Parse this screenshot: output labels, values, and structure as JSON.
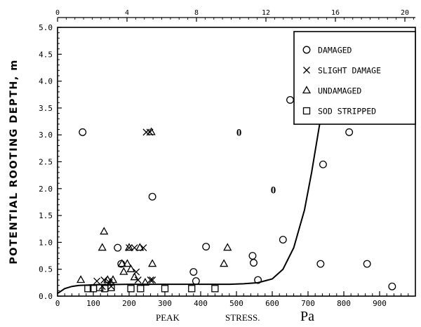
{
  "chart_data": {
    "type": "scatter",
    "title": "",
    "xlabel": "PEAK STRESS. Pa",
    "xlabel_parts": [
      "PEAK",
      "STRESS.",
      "Pa"
    ],
    "ylabel": "POTENTIAL ROOTING DEPTH, m",
    "xlim": [
      0,
      1000
    ],
    "ylim": [
      0,
      5.0
    ],
    "x_ticks": [
      0,
      100,
      200,
      300,
      400,
      500,
      600,
      700,
      800,
      900
    ],
    "x_tick_labels": [
      "0",
      "100",
      "200",
      "300",
      "400",
      "500",
      "600",
      "700",
      "800",
      "900"
    ],
    "y_ticks": [
      0,
      0.5,
      1.0,
      1.5,
      2.0,
      2.5,
      3.0,
      3.5,
      4.0,
      4.5,
      5.0
    ],
    "y_tick_labels": [
      "0.0",
      "0.5",
      "1.0",
      "1.5",
      "2.0",
      "2.5",
      "3.0",
      "3.5",
      "4.0",
      "4.5",
      "5.0"
    ],
    "top_axis_ticks": [
      0,
      4,
      8,
      12,
      16,
      20
    ],
    "top_axis_tick_labels": [
      "0",
      "4",
      "8",
      "12",
      "16",
      "20"
    ],
    "grid": false,
    "legend_position": "top-right",
    "series": [
      {
        "name": "DAMAGED",
        "marker": "circle",
        "points": [
          [
            70,
            3.05
          ],
          [
            168,
            0.9
          ],
          [
            178,
            0.6
          ],
          [
            265,
            1.85
          ],
          [
            380,
            0.45
          ],
          [
            387,
            0.28
          ],
          [
            415,
            0.92
          ],
          [
            545,
            0.75
          ],
          [
            548,
            0.62
          ],
          [
            560,
            0.3
          ],
          [
            630,
            1.05
          ],
          [
            650,
            3.65
          ],
          [
            735,
            0.6
          ],
          [
            742,
            2.45
          ],
          [
            815,
            3.05
          ],
          [
            865,
            0.6
          ],
          [
            935,
            0.18
          ]
        ]
      },
      {
        "name": "SLIGHT DAMAGE",
        "marker": "x",
        "points": [
          [
            110,
            0.28
          ],
          [
            125,
            0.18
          ],
          [
            130,
            0.3
          ],
          [
            145,
            0.25
          ],
          [
            150,
            0.18
          ],
          [
            200,
            0.9
          ],
          [
            215,
            0.9
          ],
          [
            220,
            0.45
          ],
          [
            225,
            0.3
          ],
          [
            240,
            0.9
          ],
          [
            248,
            3.05
          ],
          [
            258,
            3.05
          ],
          [
            260,
            0.3
          ],
          [
            265,
            0.3
          ]
        ]
      },
      {
        "name": "UNDAMAGED",
        "marker": "triangle",
        "points": [
          [
            65,
            0.3
          ],
          [
            125,
            0.9
          ],
          [
            130,
            1.2
          ],
          [
            140,
            0.3
          ],
          [
            148,
            0.25
          ],
          [
            155,
            0.3
          ],
          [
            180,
            0.6
          ],
          [
            185,
            0.45
          ],
          [
            195,
            0.6
          ],
          [
            200,
            0.9
          ],
          [
            205,
            0.5
          ],
          [
            215,
            0.35
          ],
          [
            230,
            0.9
          ],
          [
            245,
            0.25
          ],
          [
            262,
            3.05
          ],
          [
            265,
            0.6
          ],
          [
            465,
            0.6
          ],
          [
            475,
            0.9
          ]
        ]
      },
      {
        "name": "SOD STRIPPED",
        "marker": "square",
        "points": [
          [
            85,
            0.14
          ],
          [
            100,
            0.14
          ],
          [
            118,
            0.16
          ],
          [
            132,
            0.14
          ],
          [
            150,
            0.16
          ],
          [
            205,
            0.14
          ],
          [
            232,
            0.14
          ],
          [
            300,
            0.14
          ],
          [
            375,
            0.14
          ],
          [
            440,
            0.14
          ]
        ]
      }
    ],
    "curve": {
      "points": [
        [
          0,
          0.05
        ],
        [
          20,
          0.14
        ],
        [
          40,
          0.18
        ],
        [
          60,
          0.2
        ],
        [
          100,
          0.21
        ],
        [
          200,
          0.22
        ],
        [
          300,
          0.22
        ],
        [
          400,
          0.22
        ],
        [
          480,
          0.22
        ],
        [
          520,
          0.23
        ],
        [
          560,
          0.25
        ],
        [
          600,
          0.32
        ],
        [
          630,
          0.5
        ],
        [
          660,
          0.9
        ],
        [
          690,
          1.6
        ],
        [
          710,
          2.3
        ],
        [
          730,
          3.1
        ],
        [
          740,
          3.5
        ],
        [
          750,
          3.9
        ],
        [
          756,
          4.1
        ]
      ]
    },
    "annotations": [
      {
        "text": "0",
        "x": 507,
        "y": 3.05
      },
      {
        "text": "0",
        "x": 603,
        "y": 1.98
      }
    ]
  }
}
